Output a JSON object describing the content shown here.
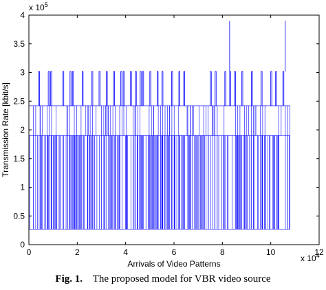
{
  "chart_data": {
    "type": "line",
    "title": "",
    "xlabel": "Arrivals of Video Patterns",
    "ylabel": "Transmission Rate [kbit/s]",
    "x_multiplier": "x 10",
    "x_exponent": "4",
    "y_multiplier": "x 10",
    "y_exponent": "5",
    "xlim": [
      0,
      12
    ],
    "ylim": [
      0,
      4
    ],
    "xticks": [
      "0",
      "2",
      "4",
      "6",
      "8",
      "10",
      "12"
    ],
    "yticks": [
      "0",
      "0.5",
      "1",
      "1.5",
      "2",
      "2.5",
      "3",
      "3.5",
      "4"
    ],
    "grid": false,
    "color": "#0000ff",
    "series": [
      {
        "levels": [
          0.27,
          1.9,
          2.42,
          3.02,
          3.9
        ],
        "x_range": [
          0,
          10.8
        ],
        "peaks_3_02": [
          0.4,
          0.8,
          0.9,
          1.4,
          1.7,
          1.8,
          2.2,
          2.6,
          2.9,
          3.2,
          3.5,
          3.8,
          3.9,
          4.2,
          4.4,
          4.6,
          4.7,
          5.0,
          5.3,
          5.5,
          5.9,
          6.2,
          6.4,
          7.5,
          7.7,
          8.1,
          8.3,
          8.5,
          8.8,
          9.2,
          9.6,
          10.0,
          10.2,
          10.5
        ],
        "peaks_3_90": [
          8.3,
          10.6
        ]
      }
    ]
  },
  "caption": {
    "fig_label": "Fig. 1.",
    "text": "The proposed model for VBR video source"
  }
}
